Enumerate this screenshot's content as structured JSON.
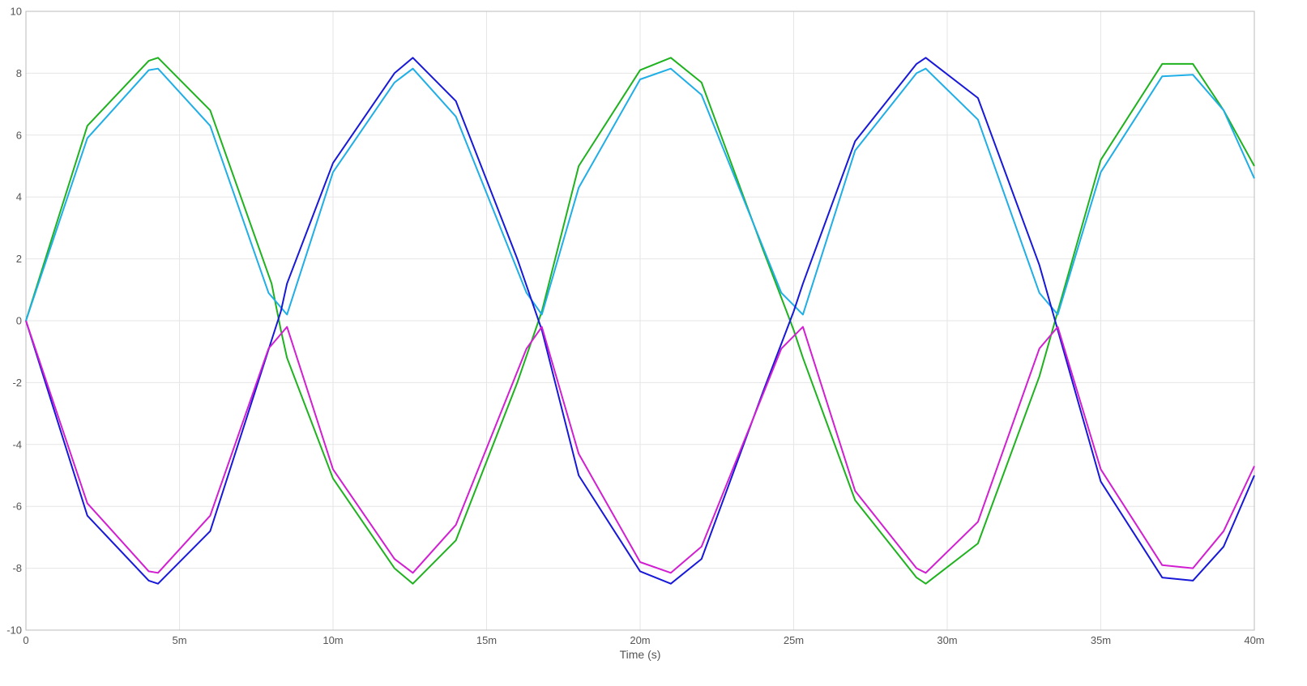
{
  "chart_data": {
    "type": "line",
    "title": "",
    "xlabel": "Time (s)",
    "ylabel": "",
    "xlim": [
      0,
      0.04
    ],
    "ylim": [
      -10,
      10
    ],
    "grid": true,
    "legend": "none",
    "x_ticks": [
      {
        "value": 0,
        "label": "0"
      },
      {
        "value": 0.005,
        "label": "5m"
      },
      {
        "value": 0.01,
        "label": "10m"
      },
      {
        "value": 0.015,
        "label": "15m"
      },
      {
        "value": 0.02,
        "label": "20m"
      },
      {
        "value": 0.025,
        "label": "25m"
      },
      {
        "value": 0.03,
        "label": "30m"
      },
      {
        "value": 0.035,
        "label": "35m"
      },
      {
        "value": 0.04,
        "label": "40m"
      }
    ],
    "y_ticks": [
      {
        "value": -10,
        "label": "-10"
      },
      {
        "value": -8,
        "label": "-8"
      },
      {
        "value": -6,
        "label": "-6"
      },
      {
        "value": -4,
        "label": "-4"
      },
      {
        "value": -2,
        "label": "-2"
      },
      {
        "value": 0,
        "label": "0"
      },
      {
        "value": 2,
        "label": "2"
      },
      {
        "value": 4,
        "label": "4"
      },
      {
        "value": 6,
        "label": "6"
      },
      {
        "value": 8,
        "label": "8"
      },
      {
        "value": 10,
        "label": "10"
      }
    ],
    "series": [
      {
        "color": "#1fb21f",
        "x": [
          0,
          0.002,
          0.004,
          0.0043,
          0.006,
          0.008,
          0.0083,
          0.0085,
          0.01,
          0.012,
          0.0126,
          0.014,
          0.016,
          0.0168,
          0.018,
          0.02,
          0.021,
          0.022,
          0.024,
          0.025,
          0.0253,
          0.027,
          0.029,
          0.0293,
          0.031,
          0.033,
          0.0336,
          0.035,
          0.037,
          0.038,
          0.039,
          0.04
        ],
        "y": [
          0,
          6.3,
          8.4,
          8.5,
          6.8,
          1.2,
          -0.3,
          -1.2,
          -5.1,
          -8.0,
          -8.5,
          -7.1,
          -2.0,
          0.3,
          5.0,
          8.1,
          8.5,
          7.7,
          2.3,
          -0.3,
          -1.2,
          -5.8,
          -8.3,
          -8.5,
          -7.2,
          -1.8,
          0.3,
          5.2,
          8.3,
          8.3,
          6.8,
          5.0
        ]
      },
      {
        "color": "#1faee6",
        "x": [
          0,
          0.002,
          0.004,
          0.0043,
          0.006,
          0.0079,
          0.0085,
          0.01,
          0.012,
          0.0126,
          0.014,
          0.0163,
          0.0168,
          0.018,
          0.02,
          0.021,
          0.022,
          0.0246,
          0.0253,
          0.027,
          0.029,
          0.0293,
          0.031,
          0.033,
          0.0336,
          0.035,
          0.037,
          0.038,
          0.039,
          0.04
        ],
        "y": [
          0,
          5.9,
          8.1,
          8.15,
          6.3,
          0.9,
          0.2,
          4.8,
          7.7,
          8.15,
          6.6,
          0.9,
          0.2,
          4.3,
          7.8,
          8.15,
          7.3,
          0.9,
          0.2,
          5.5,
          8.0,
          8.15,
          6.5,
          0.9,
          0.2,
          4.8,
          7.9,
          7.95,
          6.8,
          4.6
        ]
      },
      {
        "color": "#1818d8",
        "x": [
          0,
          0.002,
          0.004,
          0.0043,
          0.006,
          0.0083,
          0.0085,
          0.01,
          0.012,
          0.0126,
          0.014,
          0.016,
          0.0168,
          0.018,
          0.02,
          0.021,
          0.022,
          0.024,
          0.025,
          0.0253,
          0.027,
          0.029,
          0.0293,
          0.031,
          0.033,
          0.0336,
          0.035,
          0.037,
          0.038,
          0.039,
          0.04
        ],
        "y": [
          0,
          -6.3,
          -8.4,
          -8.5,
          -6.8,
          0.3,
          1.2,
          5.1,
          8.0,
          8.5,
          7.1,
          2.0,
          -0.3,
          -5.0,
          -8.1,
          -8.5,
          -7.7,
          -2.3,
          0.3,
          1.2,
          5.8,
          8.3,
          8.5,
          7.2,
          1.8,
          -0.3,
          -5.2,
          -8.3,
          -8.4,
          -7.3,
          -5.0
        ]
      },
      {
        "color": "#d11fd1",
        "x": [
          0,
          0.002,
          0.004,
          0.0043,
          0.006,
          0.0079,
          0.0085,
          0.01,
          0.012,
          0.0126,
          0.014,
          0.0163,
          0.0168,
          0.018,
          0.02,
          0.021,
          0.022,
          0.0246,
          0.0253,
          0.027,
          0.029,
          0.0293,
          0.031,
          0.033,
          0.0336,
          0.035,
          0.037,
          0.038,
          0.039,
          0.04
        ],
        "y": [
          0,
          -5.9,
          -8.1,
          -8.15,
          -6.3,
          -0.9,
          -0.2,
          -4.8,
          -7.7,
          -8.15,
          -6.6,
          -0.9,
          -0.2,
          -4.3,
          -7.8,
          -8.15,
          -7.3,
          -0.9,
          -0.2,
          -5.5,
          -8.0,
          -8.15,
          -6.5,
          -0.9,
          -0.2,
          -4.8,
          -7.9,
          -8.0,
          -6.8,
          -4.7
        ]
      }
    ]
  }
}
